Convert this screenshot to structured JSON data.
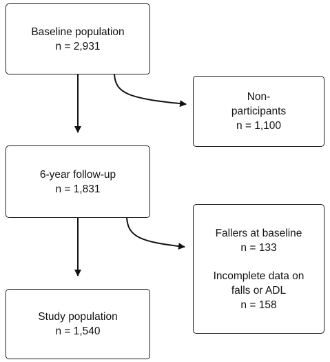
{
  "boxes": {
    "baseline": {
      "title": "Baseline population",
      "count": "n = 2,931"
    },
    "nonparticipants": {
      "line1": "Non-",
      "line2": "participants",
      "count": "n = 1,100"
    },
    "followup": {
      "title": "6-year follow-up",
      "count": "n = 1,831"
    },
    "excluded": {
      "line1": "Fallers at baseline",
      "count1": "n = 133",
      "line2": "Incomplete data on",
      "line3": "falls or ADL",
      "count2": "n = 158"
    },
    "study": {
      "title": "Study population",
      "count": "n = 1,540"
    }
  },
  "colors": {
    "stroke": "#1a1a1a",
    "box_fill": "#ffffff",
    "text": "#111111"
  }
}
